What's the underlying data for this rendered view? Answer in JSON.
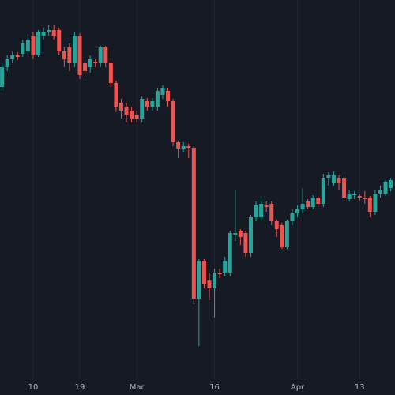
{
  "chart_data": {
    "type": "candlestick",
    "categories": [
      null,
      null,
      null,
      null,
      null,
      null,
      "10",
      null,
      null,
      null,
      null,
      null,
      null,
      null,
      null,
      "19",
      null,
      null,
      null,
      null,
      null,
      null,
      null,
      null,
      null,
      null,
      "Mar",
      null,
      null,
      null,
      null,
      null,
      null,
      null,
      null,
      null,
      null,
      null,
      null,
      null,
      null,
      "16",
      null,
      null,
      null,
      null,
      null,
      null,
      null,
      null,
      null,
      null,
      null,
      null,
      null,
      null,
      null,
      "Apr",
      null,
      null,
      null,
      null,
      null,
      null,
      null,
      null,
      null,
      null,
      null,
      "13",
      null,
      null,
      null,
      null,
      null,
      null
    ],
    "open": [
      380,
      405,
      415,
      420,
      422,
      425,
      445,
      420,
      445,
      450,
      452,
      452,
      425,
      430,
      410,
      445,
      410,
      405,
      412,
      410,
      430,
      410,
      385,
      360,
      355,
      350,
      345,
      340,
      362,
      355,
      355,
      370,
      375,
      362,
      310,
      302,
      305,
      303,
      112,
      160,
      135,
      125,
      145,
      145,
      145,
      193,
      198,
      195,
      170,
      215,
      215,
      230,
      232,
      210,
      205,
      177,
      210,
      220,
      225,
      235,
      228,
      240,
      232,
      265,
      258,
      265,
      265,
      238,
      243,
      242,
      240,
      240,
      222,
      245,
      245,
      252
    ],
    "high": [
      410,
      420,
      425,
      424,
      440,
      447,
      450,
      452,
      455,
      458,
      458,
      455,
      430,
      435,
      450,
      448,
      415,
      420,
      415,
      432,
      432,
      412,
      388,
      365,
      360,
      355,
      350,
      368,
      366,
      366,
      378,
      382,
      378,
      365,
      312,
      310,
      308,
      305,
      162,
      162,
      145,
      150,
      150,
      165,
      198,
      250,
      200,
      198,
      218,
      235,
      240,
      235,
      235,
      212,
      208,
      212,
      225,
      230,
      252,
      238,
      243,
      242,
      270,
      272,
      273,
      268,
      268,
      250,
      248,
      245,
      248,
      242,
      250,
      255,
      262,
      265
    ],
    "low": [
      375,
      400,
      410,
      414,
      418,
      420,
      415,
      418,
      440,
      445,
      440,
      420,
      405,
      400,
      405,
      390,
      392,
      398,
      405,
      405,
      405,
      380,
      348,
      340,
      335,
      335,
      335,
      335,
      350,
      350,
      350,
      365,
      355,
      305,
      290,
      298,
      290,
      105,
      52,
      125,
      110,
      88,
      138,
      140,
      140,
      185,
      180,
      165,
      165,
      210,
      210,
      222,
      205,
      190,
      175,
      175,
      205,
      215,
      220,
      225,
      225,
      228,
      228,
      255,
      255,
      250,
      235,
      235,
      238,
      235,
      232,
      215,
      218,
      240,
      242,
      248
    ],
    "close": [
      405,
      415,
      420,
      418,
      435,
      440,
      420,
      450,
      450,
      452,
      445,
      425,
      415,
      410,
      445,
      395,
      400,
      415,
      410,
      430,
      410,
      385,
      355,
      350,
      345,
      340,
      340,
      365,
      355,
      362,
      375,
      378,
      362,
      310,
      302,
      305,
      303,
      112,
      160,
      130,
      125,
      145,
      143,
      160,
      195,
      195,
      190,
      170,
      215,
      230,
      232,
      228,
      210,
      200,
      177,
      210,
      220,
      225,
      232,
      228,
      240,
      232,
      265,
      268,
      268,
      258,
      240,
      245,
      244,
      240,
      238,
      222,
      245,
      250,
      260,
      262
    ],
    "up_color": "#26a69a",
    "down_color": "#ef5350",
    "ylim": [
      0,
      490
    ],
    "grid": true
  }
}
